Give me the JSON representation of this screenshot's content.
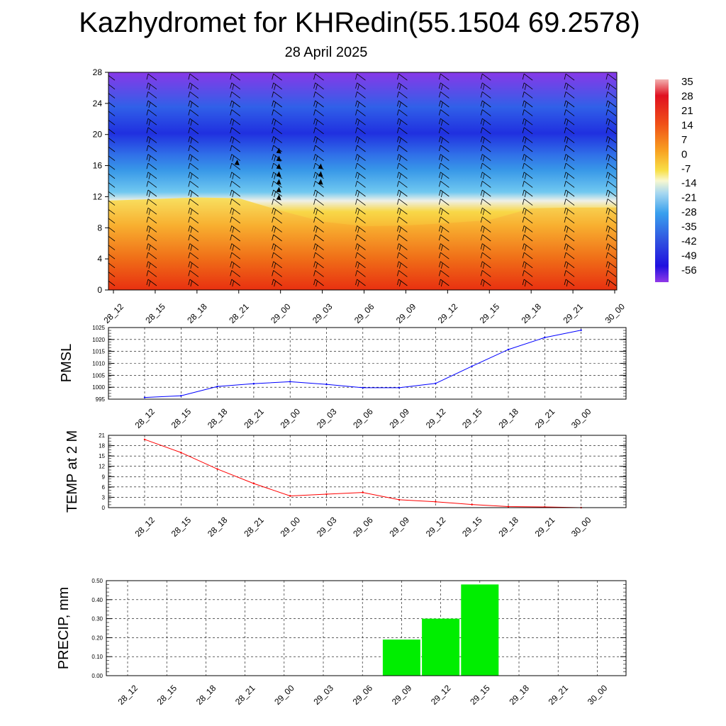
{
  "header": {
    "title": "Kazhydromet for KHRedin(55.1504 69.2578)",
    "subtitle": "28 April 2025"
  },
  "colors": {
    "pmsl_line": "#0000ff",
    "temp_line": "#ff0000",
    "precip_bar": "#00ee00",
    "colorbar": [
      "#f2a0a0",
      "#e8102a",
      "#d81818",
      "#f04818",
      "#f08018",
      "#f8b818",
      "#f8e048",
      "#f8f8c8",
      "#c8e8f0",
      "#38b0ee",
      "#3888e8",
      "#2848e0",
      "#2010e0",
      "#8830e8"
    ]
  },
  "chart_data": [
    {
      "id": "cross_section",
      "type": "heatmap",
      "title": "",
      "xlabel": "",
      "ylabel": "",
      "yticks": [
        "0",
        "4",
        "8",
        "12",
        "16",
        "20",
        "24",
        "28"
      ],
      "ylim": [
        0,
        28
      ],
      "xticks": [
        "28_12",
        "28_15",
        "28_18",
        "28_21",
        "29_00",
        "29_03",
        "29_06",
        "29_09",
        "29_12",
        "29_15",
        "29_18",
        "29_21",
        "30_00"
      ],
      "colorbar_labels": [
        "35",
        "28",
        "21",
        "14",
        "7",
        "0",
        "-7",
        "-14",
        "-21",
        "-28",
        "-35",
        "-42",
        "-49",
        "-56"
      ],
      "freezing_level": [
        11.5,
        11.7,
        11.9,
        11.8,
        10.2,
        8.8,
        8.2,
        8.3,
        8.6,
        9.0,
        10.5,
        10.6,
        10.6
      ]
    },
    {
      "id": "pmsl",
      "type": "line",
      "title": "",
      "ylabel": "PMSL",
      "ylim": [
        995,
        1025
      ],
      "yticks": [
        "995",
        "1000",
        "1005",
        "1010",
        "1015",
        "1020",
        "1025"
      ],
      "categories": [
        "28_12",
        "28_15",
        "28_18",
        "28_21",
        "29_00",
        "29_03",
        "29_06",
        "29_09",
        "29_12",
        "29_15",
        "29_18",
        "29_21",
        "30_00"
      ],
      "values": [
        995.7,
        996.4,
        1000.3,
        1001.5,
        1002.3,
        1001.2,
        999.8,
        999.8,
        1001.6,
        1008.8,
        1015.8,
        1020.8,
        1023.9
      ]
    },
    {
      "id": "temp2m",
      "type": "line",
      "title": "",
      "ylabel": "TEMP at 2 M",
      "ylim": [
        0,
        21
      ],
      "yticks": [
        "0",
        "3",
        "6",
        "9",
        "12",
        "15",
        "18",
        "21"
      ],
      "categories": [
        "28_12",
        "28_15",
        "28_18",
        "28_21",
        "29_00",
        "29_03",
        "29_06",
        "29_09",
        "29_12",
        "29_15",
        "29_18",
        "29_21",
        "30_00"
      ],
      "values": [
        19.8,
        16.0,
        11.2,
        7.0,
        3.4,
        3.9,
        4.4,
        2.3,
        1.7,
        0.9,
        0.3,
        0.2,
        0.0
      ]
    },
    {
      "id": "precip",
      "type": "bar",
      "title": "",
      "ylabel": "PRECIP, mm",
      "ylim": [
        0,
        0.5
      ],
      "yticks": [
        "0.00",
        "0.10",
        "0.20",
        "0.30",
        "0.40",
        "0.50"
      ],
      "categories": [
        "28_12",
        "28_15",
        "28_18",
        "28_21",
        "29_00",
        "29_03",
        "29_06",
        "29_09",
        "29_12",
        "29_15",
        "29_18",
        "29_21",
        "30_00"
      ],
      "values": [
        0,
        0,
        0,
        0,
        0,
        0,
        0,
        0.19,
        0.3,
        0.48,
        0,
        0,
        0
      ]
    }
  ]
}
